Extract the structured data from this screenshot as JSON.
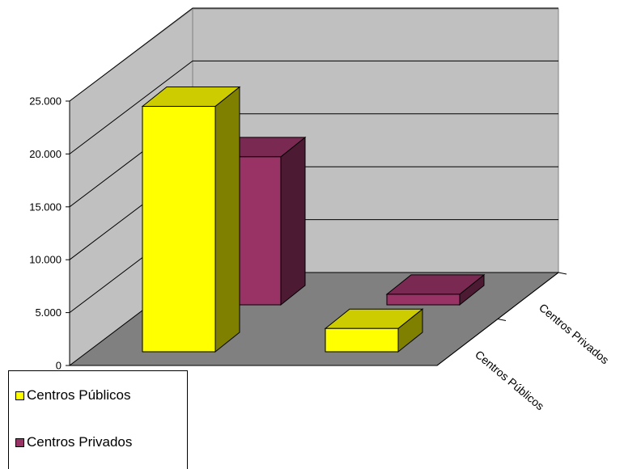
{
  "chart_data": {
    "type": "bar",
    "categories": [
      "Centros Públicos",
      "Centros Privados"
    ],
    "series": [
      {
        "name": "Centros Públicos",
        "values": [
          23200,
          2200
        ],
        "color": "#FFFF00"
      },
      {
        "name": "Centros Privados",
        "values": [
          14000,
          1000
        ],
        "color": "#993366"
      }
    ],
    "ylim": [
      0,
      25000
    ],
    "yticks": [
      "0",
      "5.000",
      "10.000",
      "15.000",
      "20.000",
      "25.000"
    ],
    "depth_labels": [
      "Centros Públicos",
      "Centros Privados"
    ],
    "grid": true,
    "legend_position": "bottom-left",
    "wall_color": "#C0C0C0",
    "floor_color": "#808080"
  }
}
